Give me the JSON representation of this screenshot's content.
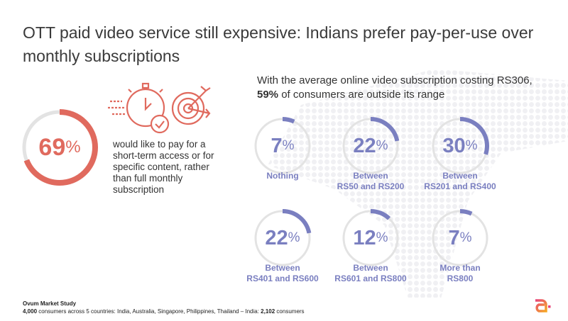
{
  "title": "OTT paid video service still expensive: Indians prefer pay-per-use over monthly subscriptions",
  "headline_stat": {
    "value": "69",
    "unit": "%",
    "fraction": 0.69,
    "description": "would like to pay for a short-term access or for specific content, rather than full monthly subscription"
  },
  "subheading": {
    "pre": "With the average online video subscription costing RS306, ",
    "bold": "59%",
    "post": " of consumers are outside its range"
  },
  "ranges": [
    {
      "value": "7",
      "unit": "%",
      "fraction": 0.07,
      "label1": "Nothing",
      "label2": ""
    },
    {
      "value": "22",
      "unit": "%",
      "fraction": 0.22,
      "label1": "Between",
      "label2": "RS50 and RS200"
    },
    {
      "value": "30",
      "unit": "%",
      "fraction": 0.3,
      "label1": "Between",
      "label2": "RS201 and RS400"
    },
    {
      "value": "22",
      "unit": "%",
      "fraction": 0.22,
      "label1": "Between",
      "label2": "RS401 and RS600"
    },
    {
      "value": "12",
      "unit": "%",
      "fraction": 0.12,
      "label1": "Between",
      "label2": "RS601 and RS800"
    },
    {
      "value": "7",
      "unit": "%",
      "fraction": 0.07,
      "label1": "More than",
      "label2": "RS800"
    }
  ],
  "footer": {
    "source": "Ovum Market Study",
    "count_bold": "4,000",
    "text": " consumers across 5 countries: India, Australia, Singapore, Philippines, Thailand – India: ",
    "india_bold": "2,102",
    "tail": " consumers"
  },
  "colors": {
    "accent_red": "#e06a5e",
    "accent_purple": "#7a7fc0",
    "track": "#e3e3e3"
  }
}
